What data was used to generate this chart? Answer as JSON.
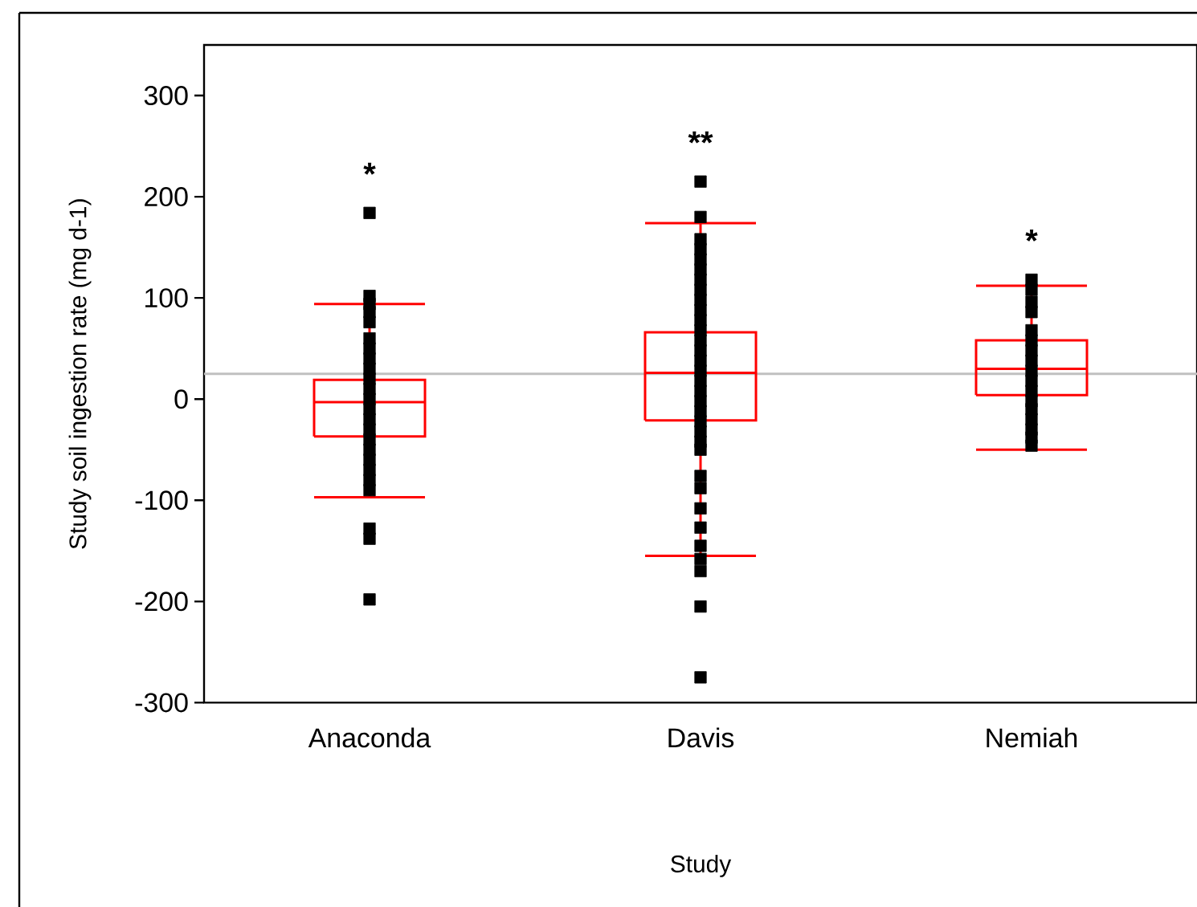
{
  "chart_data": {
    "type": "box",
    "xlabel": "Study",
    "ylabel": "Study soil ingestion rate (mg d-1)",
    "categories": [
      "Anaconda",
      "Davis",
      "Nemiah"
    ],
    "color": "#ff0000",
    "boxes": [
      {
        "low": -97,
        "q1": -37,
        "median": -3,
        "q3": 19,
        "high": 94
      },
      {
        "low": -155,
        "q1": -21,
        "median": 26,
        "q3": 66,
        "high": 174
      },
      {
        "low": -50,
        "q1": 4,
        "median": 30,
        "q3": 58,
        "high": 112
      }
    ],
    "series": [
      {
        "type": "scatter",
        "color": "#000000",
        "x": [
          "Anaconda",
          "Anaconda",
          "Anaconda",
          "Anaconda",
          "Anaconda",
          "Anaconda",
          "Anaconda",
          "Anaconda",
          "Anaconda",
          "Anaconda",
          "Anaconda",
          "Anaconda",
          "Anaconda",
          "Anaconda",
          "Anaconda",
          "Anaconda",
          "Anaconda",
          "Anaconda",
          "Anaconda",
          "Anaconda",
          "Anaconda",
          "Anaconda",
          "Anaconda",
          "Anaconda"
        ],
        "values": [
          184,
          102,
          94,
          86,
          76,
          60,
          50,
          40,
          30,
          20,
          10,
          0,
          -10,
          -20,
          -30,
          -40,
          -50,
          -60,
          -70,
          -80,
          -90,
          -128,
          -138,
          -198
        ]
      },
      {
        "type": "scatter",
        "color": "#000000",
        "x": [
          "Davis",
          "Davis",
          "Davis",
          "Davis",
          "Davis",
          "Davis",
          "Davis",
          "Davis",
          "Davis",
          "Davis",
          "Davis",
          "Davis",
          "Davis",
          "Davis",
          "Davis",
          "Davis",
          "Davis",
          "Davis",
          "Davis",
          "Davis",
          "Davis",
          "Davis",
          "Davis",
          "Davis",
          "Davis",
          "Davis",
          "Davis",
          "Davis",
          "Davis",
          "Davis",
          "Davis",
          "Davis",
          "Davis"
        ],
        "values": [
          215,
          180,
          158,
          148,
          138,
          128,
          118,
          108,
          98,
          88,
          78,
          68,
          58,
          48,
          38,
          28,
          18,
          8,
          -2,
          -12,
          -22,
          -32,
          -42,
          -50,
          -76,
          -88,
          -108,
          -127,
          -145,
          -158,
          -170,
          -205,
          -275
        ]
      },
      {
        "type": "scatter",
        "color": "#000000",
        "x": [
          "Nemiah",
          "Nemiah",
          "Nemiah",
          "Nemiah",
          "Nemiah",
          "Nemiah",
          "Nemiah",
          "Nemiah",
          "Nemiah",
          "Nemiah",
          "Nemiah",
          "Nemiah",
          "Nemiah",
          "Nemiah",
          "Nemiah",
          "Nemiah",
          "Nemiah"
        ],
        "values": [
          118,
          108,
          96,
          86,
          68,
          58,
          48,
          38,
          28,
          18,
          8,
          -2,
          -10,
          -20,
          -30,
          -38,
          -46
        ]
      }
    ],
    "ref_lines": [
      {
        "axis": "y",
        "value": 25,
        "color": "#c0c0c0"
      }
    ],
    "annotations": [
      "*",
      "**",
      "*"
    ],
    "ylim": [
      -300,
      350
    ],
    "yticks": [
      -300,
      -200,
      -100,
      0,
      100,
      200,
      300
    ],
    "marker": "square",
    "grid": false
  }
}
